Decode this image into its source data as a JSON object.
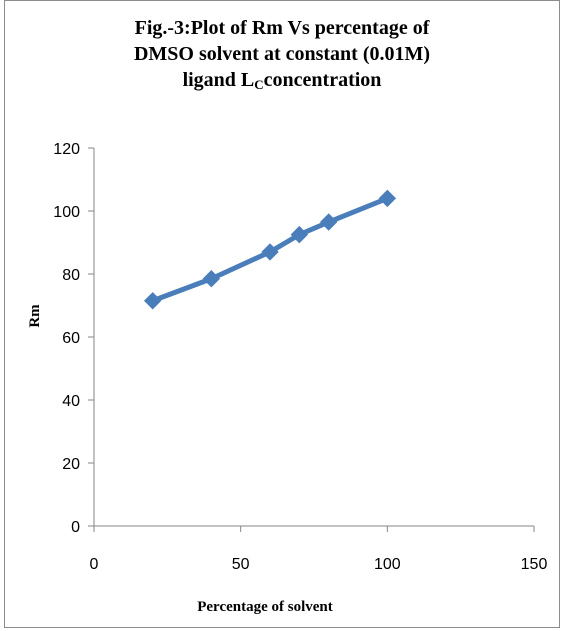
{
  "chart_data": {
    "type": "line",
    "title_lines": [
      "Fig.-3:Plot of Rm Vs percentage of",
      "DMSO solvent at constant (0.01M)",
      "ligand "
    ],
    "title_ligand_main": "L",
    "title_ligand_sub": "C",
    "title_ligand_tail": "concentration",
    "xlabel": "Percentage of solvent",
    "ylabel": "Rm",
    "xlim": [
      0,
      150
    ],
    "ylim": [
      0,
      120
    ],
    "x_ticks": [
      "0",
      "50",
      "100",
      "150"
    ],
    "y_ticks": [
      "0",
      "20",
      "40",
      "60",
      "80",
      "100",
      "120"
    ],
    "series": [
      {
        "x": [
          20,
          40,
          60,
          70,
          80,
          100
        ],
        "y": [
          71.5,
          78.5,
          87.0,
          92.5,
          96.5,
          104.0
        ]
      }
    ],
    "line_color": "#4a7ebb",
    "marker": "diamond",
    "grid": false,
    "legend": false
  }
}
